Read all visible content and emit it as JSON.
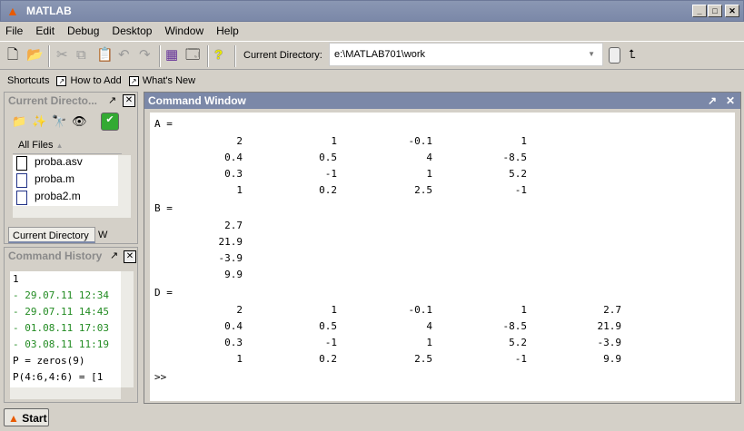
{
  "title": "MATLAB",
  "menu": [
    "File",
    "Edit",
    "Debug",
    "Desktop",
    "Window",
    "Help"
  ],
  "toolbar": {
    "current_directory_label": "Current Directory:",
    "current_directory_value": "e:\\MATLAB701\\work"
  },
  "shortcuts": {
    "label": "Shortcuts",
    "items": [
      "How to Add",
      "What's New"
    ]
  },
  "current_directory_panel": {
    "title": "Current Directo...",
    "column_header": "All Files",
    "files": [
      "proba.asv",
      "proba.m",
      "proba2.m"
    ],
    "tabs": [
      "Current Directory",
      "W"
    ]
  },
  "command_history": {
    "title": "Command History",
    "lines": [
      {
        "text": "1",
        "color": "#000000"
      },
      {
        "text": "- 29.07.11 12:34",
        "color": "#228b22"
      },
      {
        "text": "- 29.07.11 14:45",
        "color": "#228b22"
      },
      {
        "text": "- 01.08.11 17:03",
        "color": "#228b22"
      },
      {
        "text": "- 03.08.11 11:19",
        "color": "#228b22"
      },
      {
        "text": "P = zeros(9)",
        "color": "#000000"
      },
      {
        "text": "P(4:6,4:6) = [1",
        "color": "#000000"
      }
    ]
  },
  "command_window": {
    "title": "Command Window",
    "blocks": [
      {
        "name": "A =",
        "rows": [
          [
            "2",
            "1",
            "-0.1",
            "1"
          ],
          [
            "0.4",
            "0.5",
            "4",
            "-8.5"
          ],
          [
            "0.3",
            "-1",
            "1",
            "5.2"
          ],
          [
            "1",
            "0.2",
            "2.5",
            "-1"
          ]
        ]
      },
      {
        "name": "B =",
        "rows": [
          [
            "2.7"
          ],
          [
            "21.9"
          ],
          [
            "-3.9"
          ],
          [
            "9.9"
          ]
        ]
      },
      {
        "name": "D =",
        "rows": [
          [
            "2",
            "1",
            "-0.1",
            "1",
            "2.7"
          ],
          [
            "0.4",
            "0.5",
            "4",
            "-8.5",
            "21.9"
          ],
          [
            "0.3",
            "-1",
            "1",
            "5.2",
            "-3.9"
          ],
          [
            "1",
            "0.2",
            "2.5",
            "-1",
            "9.9"
          ]
        ]
      }
    ],
    "prompt": ">>"
  },
  "start_button": "Start"
}
